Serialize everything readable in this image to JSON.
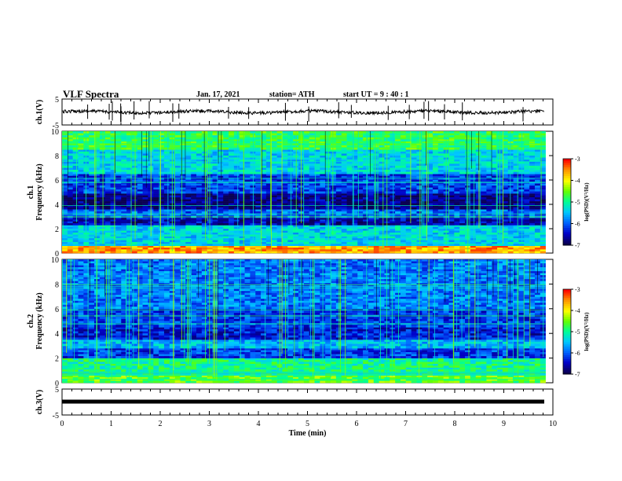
{
  "header": {
    "title": "VLF Spectra",
    "date": "Jan. 17, 2021",
    "station": "station= ATH",
    "start": "start  UT =   9 : 40 : 1"
  },
  "colors": {
    "background": "#ffffff",
    "axis": "#000000",
    "colormap": [
      "#0a0050",
      "#0000c8",
      "#0064ff",
      "#00c8ff",
      "#00ff96",
      "#64ff00",
      "#ffff00",
      "#ff9600",
      "#ff0000"
    ]
  },
  "chart_data": [
    {
      "type": "line",
      "name": "ch.1 waveform",
      "ylabel": "ch.1(V)",
      "yticks": [
        "5",
        "-5"
      ],
      "ylim": [
        -5,
        5
      ],
      "xlim": [
        0,
        10
      ]
    },
    {
      "type": "heatmap",
      "name": "ch.1 spectrogram",
      "ylabel": "ch.1\nFrequency (kHz)",
      "yticks": [
        "0",
        "2",
        "4",
        "6",
        "8",
        "10"
      ],
      "ylim": [
        0,
        10
      ],
      "xlim": [
        0,
        9.85
      ],
      "colorbar": {
        "label": "log(PSD)(V²/Hz)",
        "ticks": [
          "-3",
          "-4",
          "-5",
          "-6",
          "-7"
        ],
        "range": [
          -7,
          -3
        ]
      },
      "bands": [
        {
          "from": 0,
          "to": 0.6,
          "level": -3.6
        },
        {
          "from": 0.6,
          "to": 2.3,
          "level": -5.4
        },
        {
          "from": 2.3,
          "to": 2.9,
          "level": -6.6
        },
        {
          "from": 2.9,
          "to": 3.6,
          "level": -6.0
        },
        {
          "from": 3.6,
          "to": 4.9,
          "level": -6.8
        },
        {
          "from": 4.9,
          "to": 6.5,
          "level": -6.2
        },
        {
          "from": 6.5,
          "to": 8.5,
          "level": -5.4
        },
        {
          "from": 8.5,
          "to": 10,
          "level": -4.8
        }
      ]
    },
    {
      "type": "heatmap",
      "name": "ch.2 spectrogram",
      "ylabel": "ch.2\nFrequency (kHz)",
      "yticks": [
        "0",
        "2",
        "4",
        "6",
        "8",
        "10"
      ],
      "ylim": [
        0,
        10
      ],
      "xlim": [
        0,
        9.85
      ],
      "colorbar": {
        "label": "log(PSD)(V²/Hz)",
        "ticks": [
          "-3",
          "-4",
          "-5",
          "-6",
          "-7"
        ],
        "range": [
          -7,
          -3
        ]
      },
      "bands": [
        {
          "from": 0,
          "to": 0.6,
          "level": -4.6
        },
        {
          "from": 0.6,
          "to": 2.0,
          "level": -5.0
        },
        {
          "from": 2.0,
          "to": 2.8,
          "level": -6.2
        },
        {
          "from": 2.8,
          "to": 3.5,
          "level": -5.6
        },
        {
          "from": 3.5,
          "to": 4.5,
          "level": -6.4
        },
        {
          "from": 4.5,
          "to": 6.0,
          "level": -6.2
        },
        {
          "from": 6.0,
          "to": 10,
          "level": -5.9
        }
      ]
    },
    {
      "type": "line",
      "name": "ch.3 waveform",
      "ylabel": "ch.3(V)",
      "yticks": [
        "5",
        "-5"
      ],
      "ylim": [
        -5,
        5
      ],
      "xlim": [
        0,
        10
      ],
      "xlabel": "Time  (min)",
      "xticks": [
        "0",
        "1",
        "2",
        "3",
        "4",
        "5",
        "6",
        "7",
        "8",
        "9",
        "10"
      ],
      "level": 0
    }
  ]
}
